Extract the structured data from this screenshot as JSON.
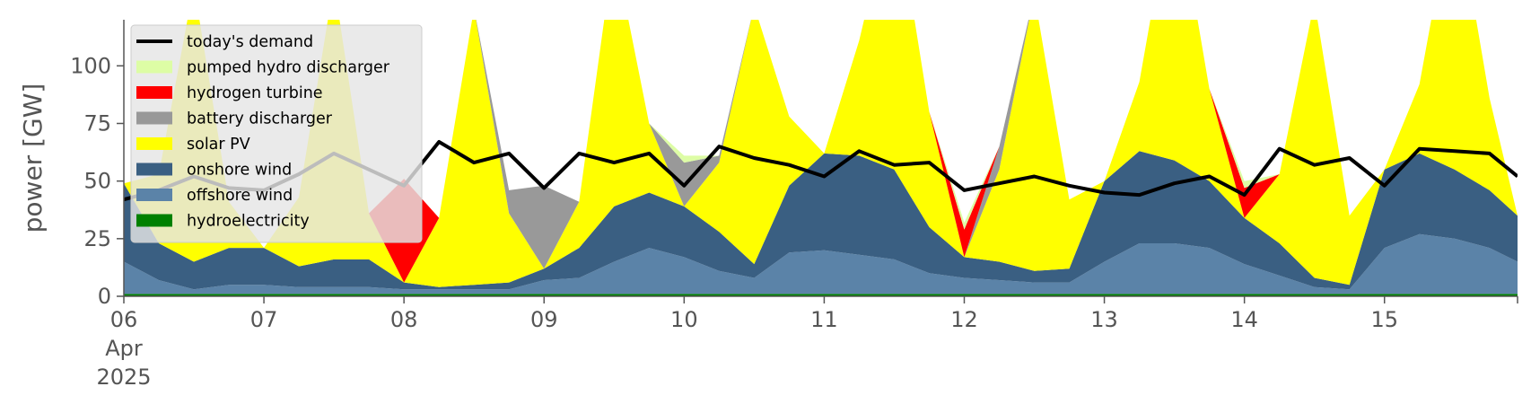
{
  "chart_data": {
    "type": "area",
    "title": "",
    "xlabel": "",
    "ylabel": "power [GW]",
    "ylim": [
      0,
      120
    ],
    "xlim": [
      0,
      9.95
    ],
    "y_ticks": [
      0,
      25,
      50,
      75,
      100
    ],
    "x_ticks": [
      {
        "pos": 0,
        "lines": [
          "06",
          "Apr",
          "2025"
        ]
      },
      {
        "pos": 1,
        "lines": [
          "07"
        ]
      },
      {
        "pos": 2,
        "lines": [
          "08"
        ]
      },
      {
        "pos": 3,
        "lines": [
          "09"
        ]
      },
      {
        "pos": 4,
        "lines": [
          "10"
        ]
      },
      {
        "pos": 5,
        "lines": [
          "11"
        ]
      },
      {
        "pos": 6,
        "lines": [
          "12"
        ]
      },
      {
        "pos": 7,
        "lines": [
          "13"
        ]
      },
      {
        "pos": 8,
        "lines": [
          "14"
        ]
      },
      {
        "pos": 9,
        "lines": [
          "15"
        ]
      }
    ],
    "grid": false,
    "legend_position": "top-left",
    "x": [
      0,
      0.25,
      0.5,
      0.75,
      1,
      1.25,
      1.5,
      1.75,
      2,
      2.25,
      2.5,
      2.75,
      3,
      3.25,
      3.5,
      3.75,
      4,
      4.25,
      4.5,
      4.75,
      5,
      5.25,
      5.5,
      5.75,
      6,
      6.25,
      6.5,
      6.75,
      7,
      7.25,
      7.5,
      7.75,
      8,
      8.25,
      8.5,
      8.75,
      9,
      9.25,
      9.5,
      9.75,
      9.95
    ],
    "series": [
      {
        "name": "hydroelectricity",
        "color": "#008000",
        "values": [
          1,
          1,
          1,
          1,
          1,
          1,
          1,
          1,
          1,
          1,
          1,
          1,
          1,
          1,
          1,
          1,
          1,
          1,
          1,
          1,
          1,
          1,
          1,
          1,
          1,
          1,
          1,
          1,
          1,
          1,
          1,
          1,
          1,
          1,
          1,
          1,
          1,
          1,
          1,
          1,
          1
        ]
      },
      {
        "name": "offshore wind",
        "color": "#5b83a8",
        "values": [
          14,
          6,
          2,
          4,
          4,
          3,
          3,
          3,
          2,
          2,
          2,
          2,
          6,
          7,
          14,
          20,
          16,
          10,
          7,
          18,
          19,
          17,
          15,
          9,
          7,
          6,
          5,
          5,
          14,
          22,
          22,
          20,
          13,
          8,
          3,
          2,
          20,
          26,
          24,
          20,
          14
        ]
      },
      {
        "name": "onshore wind",
        "color": "#3a5f82",
        "values": [
          34,
          16,
          12,
          16,
          16,
          9,
          12,
          12,
          3,
          1,
          2,
          3,
          5,
          13,
          24,
          24,
          22,
          17,
          6,
          29,
          42,
          43,
          39,
          20,
          9,
          8,
          5,
          6,
          35,
          40,
          36,
          29,
          20,
          14,
          4,
          2,
          34,
          35,
          30,
          25,
          20
        ]
      },
      {
        "name": "solar PV",
        "color": "#ffff00",
        "values": [
          0,
          30,
          120,
          20,
          0,
          30,
          120,
          20,
          0,
          30,
          120,
          30,
          0,
          20,
          112,
          30,
          0,
          30,
          112,
          30,
          0,
          50,
          120,
          50,
          0,
          40,
          120,
          30,
          0,
          30,
          120,
          40,
          0,
          30,
          120,
          30,
          0,
          30,
          120,
          40,
          0
        ]
      },
      {
        "name": "battery discharger",
        "color": "#999999",
        "values": [
          0,
          0,
          0,
          0,
          0,
          0,
          0,
          0,
          0,
          0,
          0,
          10,
          36,
          0,
          0,
          0,
          19,
          3,
          0,
          0,
          0,
          0,
          0,
          0,
          0,
          10,
          0,
          0,
          0,
          0,
          0,
          0,
          0,
          0,
          0,
          0,
          0,
          0,
          0,
          0,
          0
        ]
      },
      {
        "name": "hydrogen turbine",
        "color": "#ff0000",
        "values": [
          0,
          0,
          0,
          0,
          0,
          0,
          0,
          0,
          45,
          0,
          0,
          0,
          0,
          0,
          0,
          0,
          0,
          0,
          0,
          0,
          0,
          0,
          0,
          0,
          12,
          0,
          0,
          0,
          0,
          0,
          0,
          0,
          13,
          0,
          0,
          0,
          0,
          0,
          0,
          0,
          0
        ]
      },
      {
        "name": "pumped hydro discharger",
        "color": "#ddfda5",
        "values": [
          0,
          0,
          0,
          0,
          0,
          0,
          0,
          0,
          0,
          0,
          0,
          0,
          0,
          0,
          0,
          0,
          3,
          0,
          0,
          0,
          0,
          0,
          0,
          0,
          3,
          0,
          0,
          0,
          0,
          0,
          0,
          0,
          3,
          0,
          0,
          0,
          0,
          0,
          0,
          0,
          0
        ]
      }
    ],
    "demand": {
      "name": "today's demand",
      "color": "#000000",
      "values": [
        42,
        46,
        52,
        47,
        46,
        53,
        62,
        55,
        48,
        67,
        58,
        62,
        47,
        62,
        58,
        62,
        48,
        65,
        60,
        57,
        52,
        63,
        57,
        58,
        46,
        49,
        52,
        48,
        45,
        44,
        49,
        52,
        44,
        64,
        57,
        60,
        48,
        64,
        63,
        62,
        52
      ]
    },
    "legend_entries": [
      {
        "name": "today's demand",
        "color": "#000000",
        "kind": "line"
      },
      {
        "name": "pumped hydro discharger",
        "color": "#ddfda5",
        "kind": "patch"
      },
      {
        "name": "hydrogen turbine",
        "color": "#ff0000",
        "kind": "patch"
      },
      {
        "name": "battery discharger",
        "color": "#999999",
        "kind": "patch"
      },
      {
        "name": "solar PV",
        "color": "#ffff00",
        "kind": "patch"
      },
      {
        "name": "onshore wind",
        "color": "#3a5f82",
        "kind": "patch"
      },
      {
        "name": "offshore wind",
        "color": "#5b83a8",
        "kind": "patch"
      },
      {
        "name": "hydroelectricity",
        "color": "#008000",
        "kind": "patch"
      }
    ]
  }
}
